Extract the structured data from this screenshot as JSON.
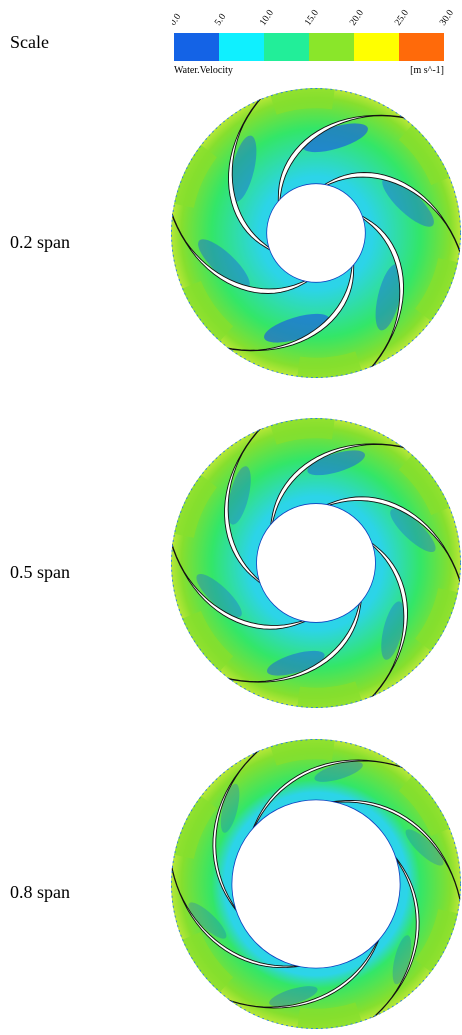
{
  "scale_label": "Scale",
  "colorbar": {
    "variable": "Water.Velocity",
    "units": "[m s^-1]",
    "ticks": [
      "0.0",
      "5.0",
      "10.0",
      "15.0",
      "20.0",
      "25.0",
      "30.0"
    ],
    "colors": [
      "#1463e6",
      "#0ff0ff",
      "#22ee99",
      "#8ae62a",
      "#ffff00",
      "#ff6a0a"
    ]
  },
  "panels": [
    {
      "label": "0.2 span",
      "hub_ratio": 0.34,
      "low_strength": 1.0
    },
    {
      "label": "0.5 span",
      "hub_ratio": 0.41,
      "low_strength": 0.7
    },
    {
      "label": "0.8 span",
      "hub_ratio": 0.58,
      "low_strength": 0.35
    }
  ],
  "impeller": {
    "blade_count": 6,
    "rotation": "counterclockwise-swept blades",
    "color_green": "#33e668",
    "color_cyan": "#2cd4e8",
    "color_blue": "#1a5fe0",
    "color_lightgreen": "#86df2e",
    "color_yellowgreen": "#b8e838"
  }
}
